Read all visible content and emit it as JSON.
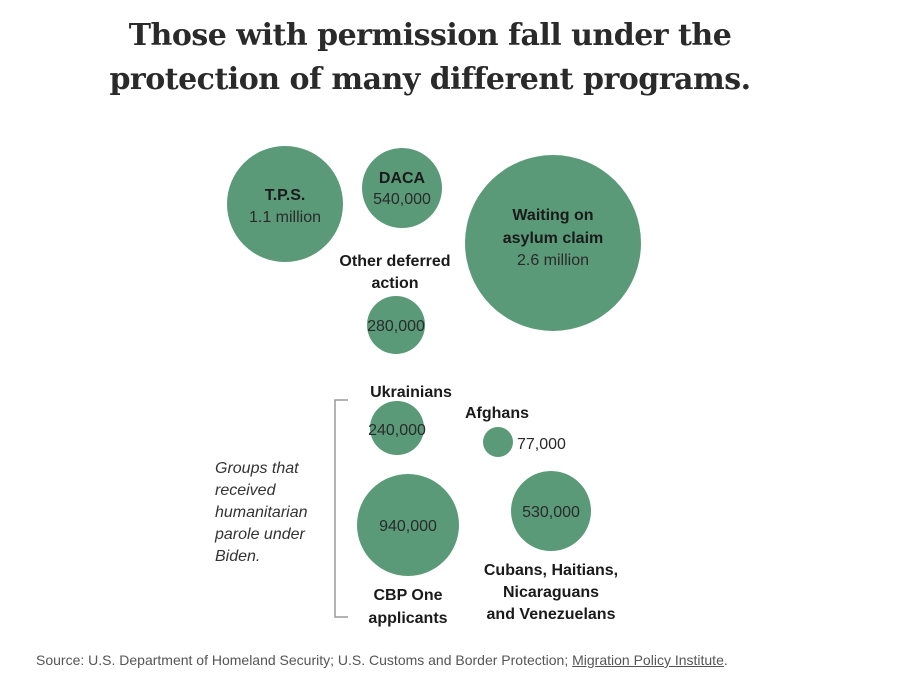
{
  "title_line1": "Those with permission fall under the",
  "title_line2": "protection of many different programs.",
  "colors": {
    "bubble": "#5a9a79",
    "bracket": "#9a9a9a"
  },
  "chart_data": {
    "type": "bubble",
    "title": "Those with permission fall under the protection of many different programs.",
    "series": [
      {
        "name": "T.P.S.",
        "value": 1100000,
        "value_label": "1.1 million"
      },
      {
        "name": "DACA",
        "value": 540000,
        "value_label": "540,000"
      },
      {
        "name": "Waiting on asylum claim",
        "value": 2600000,
        "value_label": "2.6 million"
      },
      {
        "name": "Other deferred action",
        "value": 280000,
        "value_label": "280,000"
      },
      {
        "name": "Ukrainians",
        "value": 240000,
        "value_label": "240,000",
        "group": "humanitarian parole"
      },
      {
        "name": "Afghans",
        "value": 77000,
        "value_label": "77,000",
        "group": "humanitarian parole"
      },
      {
        "name": "CBP One applicants",
        "value": 940000,
        "value_label": "940,000",
        "group": "humanitarian parole"
      },
      {
        "name": "Cubans, Haitians, Nicaraguans and Venezuelans",
        "value": 530000,
        "value_label": "530,000",
        "group": "humanitarian parole"
      }
    ],
    "annotation": "Groups that received humanitarian parole under Biden."
  },
  "labels": {
    "tps": {
      "name": "T.P.S.",
      "value": "1.1 million"
    },
    "daca": {
      "name": "DACA",
      "value": "540,000"
    },
    "asylum": {
      "name1": "Waiting on",
      "name2": "asylum claim",
      "value": "2.6 million"
    },
    "other": {
      "name1": "Other deferred",
      "name2": "action",
      "value": "280,000"
    },
    "ukrainians": {
      "name": "Ukrainians",
      "value": "240,000"
    },
    "afghans": {
      "name": "Afghans",
      "value": "77,000"
    },
    "cbp": {
      "value": "940,000",
      "name1": "CBP One",
      "name2": "applicants"
    },
    "cubans": {
      "value": "530,000",
      "name1": "Cubans, Haitians,",
      "name2": "Nicaraguans",
      "name3": "and Venezuelans"
    }
  },
  "annotation_lines": [
    "Groups that",
    "received",
    "humanitarian",
    "parole under",
    "Biden."
  ],
  "source": {
    "prefix": "Source: U.S. Department of Homeland Security; U.S. Customs and Border Protection; ",
    "link": "Migration Policy Institute",
    "suffix": "."
  }
}
